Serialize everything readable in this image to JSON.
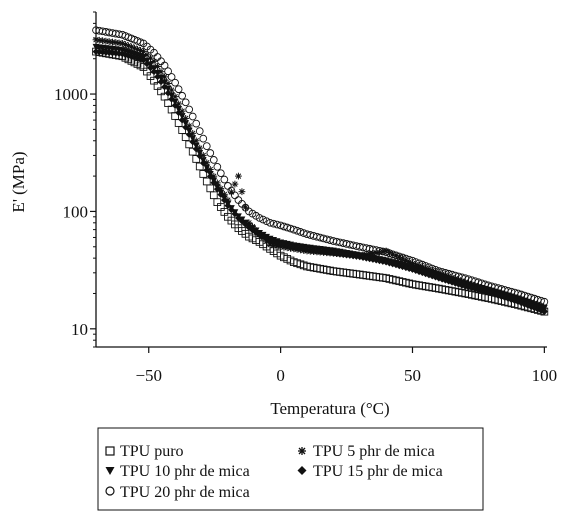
{
  "chart_data": {
    "type": "scatter",
    "title": "",
    "xlabel": "Temperatura (°C)",
    "ylabel": "E' (MPa)",
    "xlim": [
      -70,
      101
    ],
    "ylim": [
      7,
      5000
    ],
    "y_scale": "log",
    "grid": false,
    "legend_position": "bottom",
    "x_ticks": [
      {
        "value": -50,
        "label": "−50"
      },
      {
        "value": 0,
        "label": "0"
      },
      {
        "value": 50,
        "label": "50"
      },
      {
        "value": 100,
        "label": "100"
      }
    ],
    "y_ticks": [
      {
        "value": 10,
        "label": "10"
      },
      {
        "value": 100,
        "label": "100"
      },
      {
        "value": 1000,
        "label": "1000"
      }
    ],
    "series": [
      {
        "name": "TPU puro",
        "marker": "open-square",
        "x": [
          -70,
          -60,
          -52,
          -48,
          -44,
          -40,
          -36,
          -32,
          -28,
          -24,
          -20,
          -16,
          -12,
          -8,
          -4,
          0,
          5,
          10,
          20,
          30,
          40,
          50,
          60,
          70,
          80,
          90,
          100
        ],
        "y": [
          2300,
          2100,
          1700,
          1300,
          950,
          650,
          430,
          280,
          180,
          120,
          90,
          72,
          61,
          55,
          48,
          42,
          37,
          34,
          31,
          29,
          27,
          24,
          22,
          20,
          18,
          16,
          14
        ]
      },
      {
        "name": "TPU 5 phr de mica",
        "marker": "asterisk",
        "x": [
          -70,
          -60,
          -52,
          -48,
          -44,
          -40,
          -36,
          -32,
          -28,
          -24,
          -20,
          -16,
          -12,
          -8,
          -4,
          0,
          5,
          10,
          20,
          30,
          40,
          50,
          60,
          70,
          80,
          90,
          100
        ],
        "y": [
          2900,
          2700,
          2300,
          1900,
          1400,
          950,
          620,
          400,
          260,
          175,
          125,
          200,
          80,
          64,
          52,
          50,
          48,
          46,
          44,
          42,
          46,
          36,
          30,
          25,
          21,
          18,
          15
        ]
      },
      {
        "name": "TPU 10 phr de mica",
        "marker": "filled-triangle-down",
        "x": [
          -70,
          -60,
          -52,
          -48,
          -44,
          -40,
          -36,
          -32,
          -28,
          -24,
          -20,
          -16,
          -12,
          -8,
          -4,
          0,
          5,
          10,
          20,
          30,
          40,
          50,
          60,
          70,
          80,
          90,
          100
        ],
        "y": [
          2500,
          2350,
          2050,
          1650,
          1250,
          850,
          560,
          360,
          235,
          160,
          115,
          90,
          75,
          65,
          58,
          54,
          51,
          49,
          46,
          42,
          38,
          33,
          28,
          24,
          21,
          18,
          15
        ]
      },
      {
        "name": "TPU 15 phr de mica",
        "marker": "filled-diamond",
        "x": [
          -70,
          -60,
          -52,
          -48,
          -44,
          -40,
          -36,
          -32,
          -28,
          -24,
          -20,
          -16,
          -12,
          -8,
          -4,
          0,
          5,
          10,
          20,
          30,
          40,
          50,
          60,
          70,
          80,
          90,
          100
        ],
        "y": [
          2300,
          2200,
          1950,
          1550,
          1150,
          800,
          520,
          340,
          225,
          155,
          112,
          88,
          73,
          63,
          56,
          52,
          49,
          47,
          44,
          41,
          37,
          32,
          27,
          23,
          20,
          17,
          14
        ]
      },
      {
        "name": "TPU 20 phr de mica",
        "marker": "open-circle",
        "x": [
          -70,
          -60,
          -52,
          -48,
          -44,
          -40,
          -36,
          -32,
          -28,
          -24,
          -20,
          -16,
          -12,
          -8,
          -4,
          0,
          5,
          10,
          20,
          30,
          40,
          50,
          60,
          70,
          80,
          90,
          100
        ],
        "y": [
          3500,
          3200,
          2700,
          2250,
          1750,
          1250,
          850,
          560,
          360,
          240,
          165,
          125,
          100,
          88,
          80,
          76,
          70,
          64,
          56,
          50,
          45,
          38,
          31,
          27,
          23,
          20,
          17
        ]
      }
    ],
    "legend_entries": [
      {
        "series": 0,
        "symbol": "□",
        "label": "TPU puro"
      },
      {
        "series": 1,
        "symbol": "∗",
        "label": "TPU 5 phr de mica"
      },
      {
        "series": 2,
        "symbol": "▼",
        "label": "TPU 10 phr de mica"
      },
      {
        "series": 3,
        "symbol": "◆",
        "label": "TPU 15 phr de mica"
      },
      {
        "series": 4,
        "symbol": "○",
        "label": "TPU 20 phr de mica"
      }
    ]
  }
}
